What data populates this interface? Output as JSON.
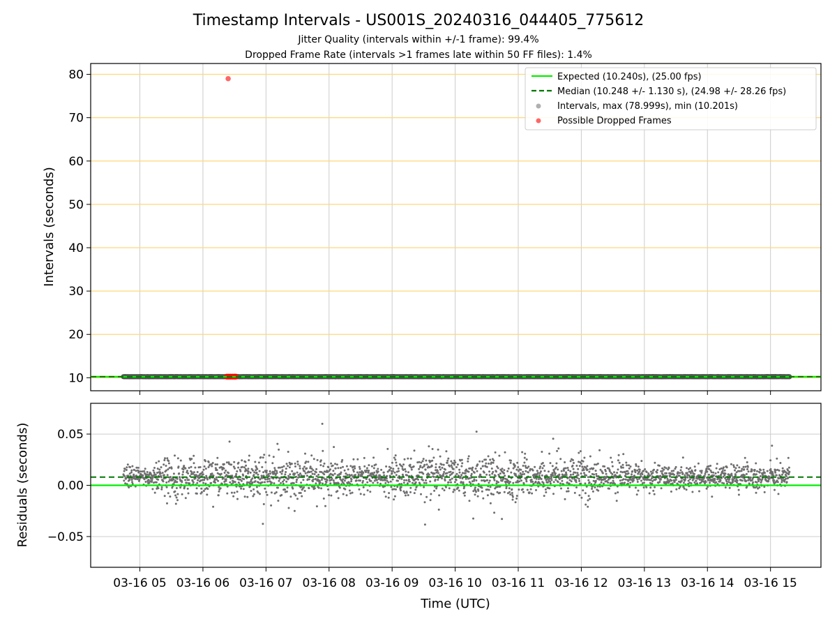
{
  "figure": {
    "title": "Timestamp Intervals - US001S_20240316_044405_775612",
    "subtitle1": "Jitter Quality (intervals within +/-1 frame): 99.4%",
    "subtitle2": "Dropped Frame Rate (intervals >1 frames late within 50 FF files): 1.4%"
  },
  "colors": {
    "expected": "#00ee00",
    "median": "#007700",
    "intervals": "#4f4f4f",
    "interval_legend": "#b0b0b0",
    "dropped": "#ff0000",
    "hgrid_top": "#ffd77a",
    "grid": "#cccccc",
    "residual_points": "#6e6e6e"
  },
  "chart_data": [
    {
      "type": "scatter",
      "panel": "intervals",
      "ylabel": "Intervals (seconds)",
      "ylim": [
        7,
        82.5
      ],
      "yticks": [
        10,
        20,
        30,
        40,
        50,
        60,
        70,
        80
      ],
      "x_unit": "hours UTC on 2024-03-16",
      "xlim": [
        4.22,
        15.8
      ],
      "xticks": [
        5,
        6,
        7,
        8,
        9,
        10,
        11,
        12,
        13,
        14,
        15
      ],
      "xtick_labels": [
        "03-16 05",
        "03-16 06",
        "03-16 07",
        "03-16 08",
        "03-16 09",
        "03-16 10",
        "03-16 11",
        "03-16 12",
        "03-16 13",
        "03-16 14",
        "03-16 15"
      ],
      "xtick_labels_visible": false,
      "grid": true,
      "legend_position": "top-right",
      "series": [
        {
          "name": "Expected (10.240s), (25.00 fps)",
          "kind": "hline",
          "y": 10.24
        },
        {
          "name": "Median (10.248 +/- 1.130 s), (24.98 +/- 28.26 fps)",
          "kind": "hline-dashed",
          "y": 10.248
        },
        {
          "name": "Intervals, max (78.999s), min (10.201s)",
          "kind": "points",
          "x_range": [
            4.74,
            15.3
          ],
          "y_range": [
            10.201,
            10.29
          ],
          "max": 78.999,
          "min": 10.201
        },
        {
          "name": "Possible Dropped Frames",
          "kind": "points",
          "points": [
            [
              6.4,
              78.999
            ],
            [
              6.38,
              10.25
            ],
            [
              6.41,
              10.25
            ],
            [
              6.44,
              10.25
            ],
            [
              6.47,
              10.25
            ],
            [
              6.5,
              10.25
            ],
            [
              6.52,
              10.25
            ]
          ]
        }
      ]
    },
    {
      "type": "scatter",
      "panel": "residuals",
      "ylabel": "Residuals (seconds)",
      "xlabel": "Time (UTC)",
      "ylim": [
        -0.08,
        0.08
      ],
      "yticks": [
        -0.05,
        0.0,
        0.05
      ],
      "ytick_labels": [
        "−0.05",
        "0.00",
        "0.05"
      ],
      "x_unit": "hours UTC on 2024-03-16",
      "xlim": [
        4.22,
        15.8
      ],
      "xticks": [
        5,
        6,
        7,
        8,
        9,
        10,
        11,
        12,
        13,
        14,
        15
      ],
      "xtick_labels": [
        "03-16 05",
        "03-16 06",
        "03-16 07",
        "03-16 08",
        "03-16 09",
        "03-16 10",
        "03-16 11",
        "03-16 12",
        "03-16 13",
        "03-16 14",
        "03-16 15"
      ],
      "grid": true,
      "series": [
        {
          "kind": "hline",
          "y": 0.0
        },
        {
          "kind": "hline-dashed",
          "y": 0.008
        },
        {
          "kind": "points",
          "x_range": [
            4.74,
            15.3
          ],
          "center": 0.008,
          "spread_range": [
            -0.04,
            0.06
          ]
        }
      ]
    }
  ]
}
